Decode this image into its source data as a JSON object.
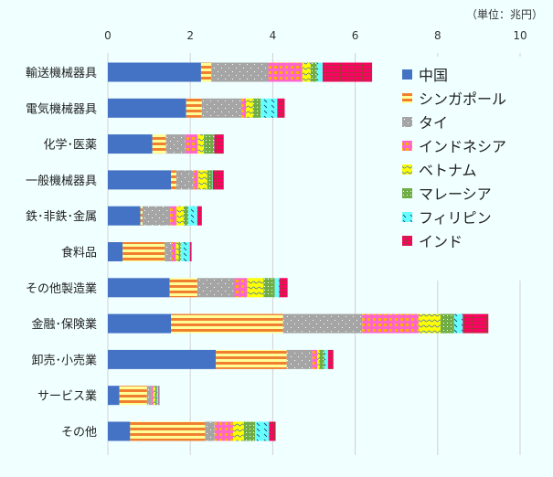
{
  "chart_data": {
    "type": "bar",
    "orientation": "horizontal",
    "stacked": true,
    "unit_label": "（単位：兆円）",
    "xlim": [
      0,
      10
    ],
    "xticks": [
      0,
      2,
      4,
      6,
      8,
      10
    ],
    "grid": true,
    "legend_position": "right",
    "categories": [
      "輸送機械器具",
      "電気機械器具",
      "化学･医薬",
      "一般機械器具",
      "鉄･非鉄･金属",
      "食料品",
      "その他製造業",
      "金融･保険業",
      "卸売･小売業",
      "サービス業",
      "その他"
    ],
    "series": [
      {
        "name": "中国",
        "color": "#4472c4",
        "pattern": "solid",
        "values": [
          2.26,
          1.9,
          1.08,
          1.53,
          0.79,
          0.36,
          1.5,
          1.53,
          2.62,
          0.28,
          0.54
        ]
      },
      {
        "name": "シンガポール",
        "color": "#f08030",
        "pattern": "stripes",
        "values": [
          0.25,
          0.38,
          0.33,
          0.13,
          0.05,
          1.02,
          0.67,
          2.72,
          1.72,
          0.67,
          1.82
        ]
      },
      {
        "name": "タイ",
        "color": "#a5a5a5",
        "pattern": "dots",
        "values": [
          1.38,
          0.96,
          0.47,
          0.42,
          0.67,
          0.17,
          0.9,
          1.92,
          0.61,
          0.11,
          0.23
        ]
      },
      {
        "name": "インドネシア",
        "color": "#ff66cc",
        "pattern": "checks",
        "values": [
          0.83,
          0.11,
          0.3,
          0.11,
          0.16,
          0.1,
          0.31,
          1.37,
          0.13,
          0.04,
          0.45
        ]
      },
      {
        "name": "ベトナム",
        "color": "#ffff00",
        "pattern": "waves",
        "values": [
          0.2,
          0.17,
          0.15,
          0.22,
          0.17,
          0.07,
          0.4,
          0.53,
          0.05,
          0.04,
          0.26
        ]
      },
      {
        "name": "マレーシア",
        "color": "#70ad47",
        "pattern": "grid",
        "values": [
          0.15,
          0.19,
          0.24,
          0.13,
          0.11,
          0.05,
          0.27,
          0.33,
          0.12,
          0.05,
          0.27
        ]
      },
      {
        "name": "フィリピン",
        "color": "#66ffff",
        "pattern": "dashes",
        "values": [
          0.14,
          0.4,
          0.01,
          0.01,
          0.22,
          0.22,
          0.11,
          0.21,
          0.09,
          0.04,
          0.34
        ]
      },
      {
        "name": "インド",
        "color": "#e8174d",
        "pattern": "brick",
        "values": [
          1.2,
          0.18,
          0.23,
          0.26,
          0.11,
          0.04,
          0.2,
          0.62,
          0.13,
          0.02,
          0.16
        ]
      }
    ]
  }
}
